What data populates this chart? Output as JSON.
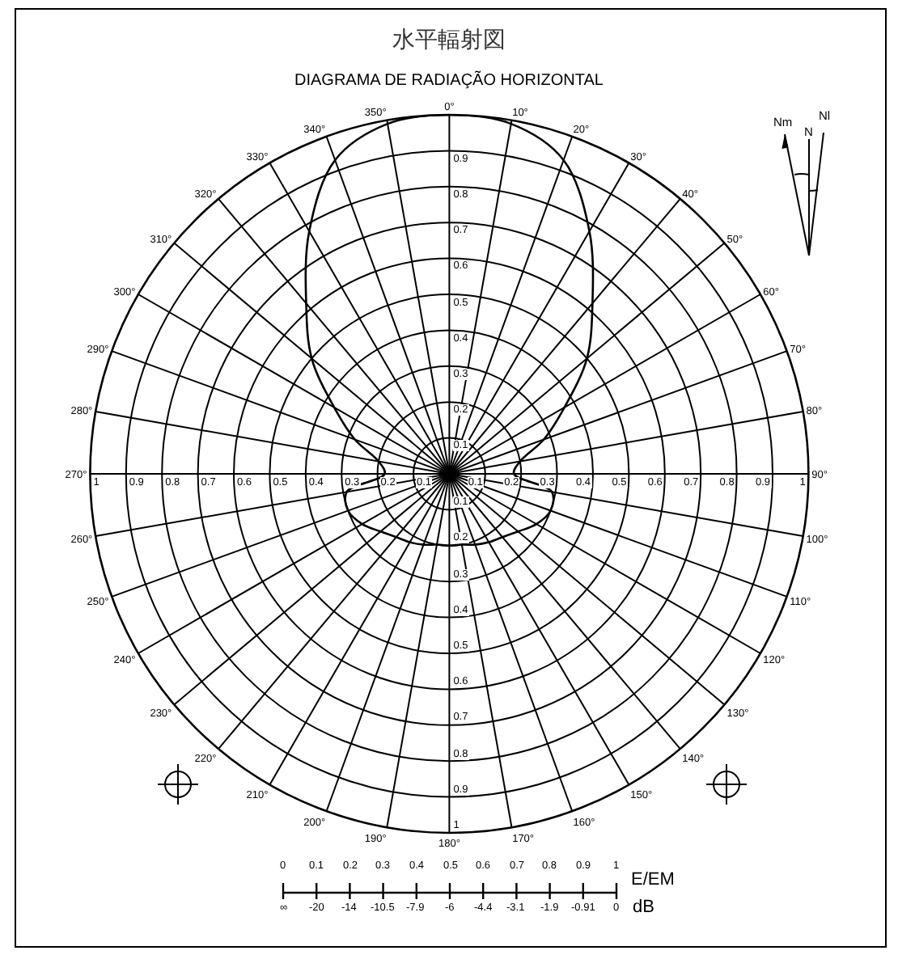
{
  "chart_data": {
    "type": "radar",
    "title": "水平輻射図",
    "subtitle": "DIAGRAMA DE RADIAÇÃO HORIZONTAL",
    "categories": [
      "0°",
      "10°",
      "20°",
      "30°",
      "40°",
      "50°",
      "60°",
      "70°",
      "80°",
      "90°",
      "100°",
      "110°",
      "120°",
      "130°",
      "140°",
      "150°",
      "160°",
      "170°",
      "180°",
      "190°",
      "200°",
      "210°",
      "220°",
      "230°",
      "240°",
      "250°",
      "260°",
      "270°",
      "280°",
      "290°",
      "300°",
      "310°",
      "320°",
      "330°",
      "340°",
      "350°"
    ],
    "series": [
      {
        "color": "#000000",
        "values": [
          1.0,
          0.99,
          0.93,
          0.78,
          0.62,
          0.5,
          0.37,
          0.28,
          0.2,
          0.18,
          0.29,
          0.3,
          0.28,
          0.25,
          0.23,
          0.22,
          0.21,
          0.2,
          0.2,
          0.2,
          0.21,
          0.22,
          0.23,
          0.25,
          0.28,
          0.3,
          0.29,
          0.18,
          0.2,
          0.28,
          0.37,
          0.5,
          0.62,
          0.78,
          0.93,
          0.99
        ]
      }
    ],
    "ylim": [
      0,
      1
    ],
    "yticks": [
      0.1,
      0.2,
      0.3,
      0.4,
      0.5,
      0.6,
      0.7,
      0.8,
      0.9,
      1
    ],
    "annotations": [
      "Nm",
      "N",
      "Nl",
      {
        "text": "0.1",
        "x": "0°"
      },
      {
        "text": "0.2",
        "x": "0°"
      },
      {
        "text": "0.3",
        "x": "0°"
      },
      {
        "text": "0.4",
        "x": "0°"
      },
      {
        "text": "0.5",
        "x": "0°"
      },
      {
        "text": "0.6",
        "x": "0°"
      },
      {
        "text": "0.7",
        "x": "0°"
      },
      {
        "text": "0.8",
        "x": "0°"
      },
      {
        "text": "0.9",
        "x": "0°"
      },
      {
        "text": "0.1",
        "x": "180°"
      },
      {
        "text": "0.2",
        "x": "180°"
      },
      {
        "text": "0.3",
        "x": "180°"
      },
      {
        "text": "0.4",
        "x": "180°"
      },
      {
        "text": "0.5",
        "x": "180°"
      },
      {
        "text": "0.6",
        "x": "180°"
      },
      {
        "text": "0.7",
        "x": "180°"
      },
      {
        "text": "0.8",
        "x": "180°"
      },
      {
        "text": "0.9",
        "x": "180°"
      },
      {
        "text": "1",
        "x": "180°"
      },
      {
        "text": "0.1",
        "x": "270°"
      },
      {
        "text": "0.2",
        "x": "270°"
      },
      {
        "text": "0.3",
        "x": "270°"
      },
      {
        "text": "0.4",
        "x": "270°"
      },
      {
        "text": "0.5",
        "x": "270°"
      },
      {
        "text": "0.6",
        "x": "270°"
      },
      {
        "text": "0.7",
        "x": "270°"
      },
      {
        "text": "0.8",
        "x": "270°"
      },
      {
        "text": "0.9",
        "x": "270°"
      },
      {
        "text": "1",
        "x": "270°"
      },
      "0",
      "0.1",
      "0.2",
      "0.3",
      "0.4",
      "0.5",
      "0.6",
      "0.7",
      "0.8",
      "0.9",
      "1",
      "E/EM",
      "∞",
      "-20",
      "-14",
      "-10.5",
      "-7.9",
      "-6",
      "-4.4",
      "-3.1",
      "-1.9",
      "-0.91",
      "0",
      "dB"
    ],
    "grid": true,
    "line_style": "solid"
  }
}
